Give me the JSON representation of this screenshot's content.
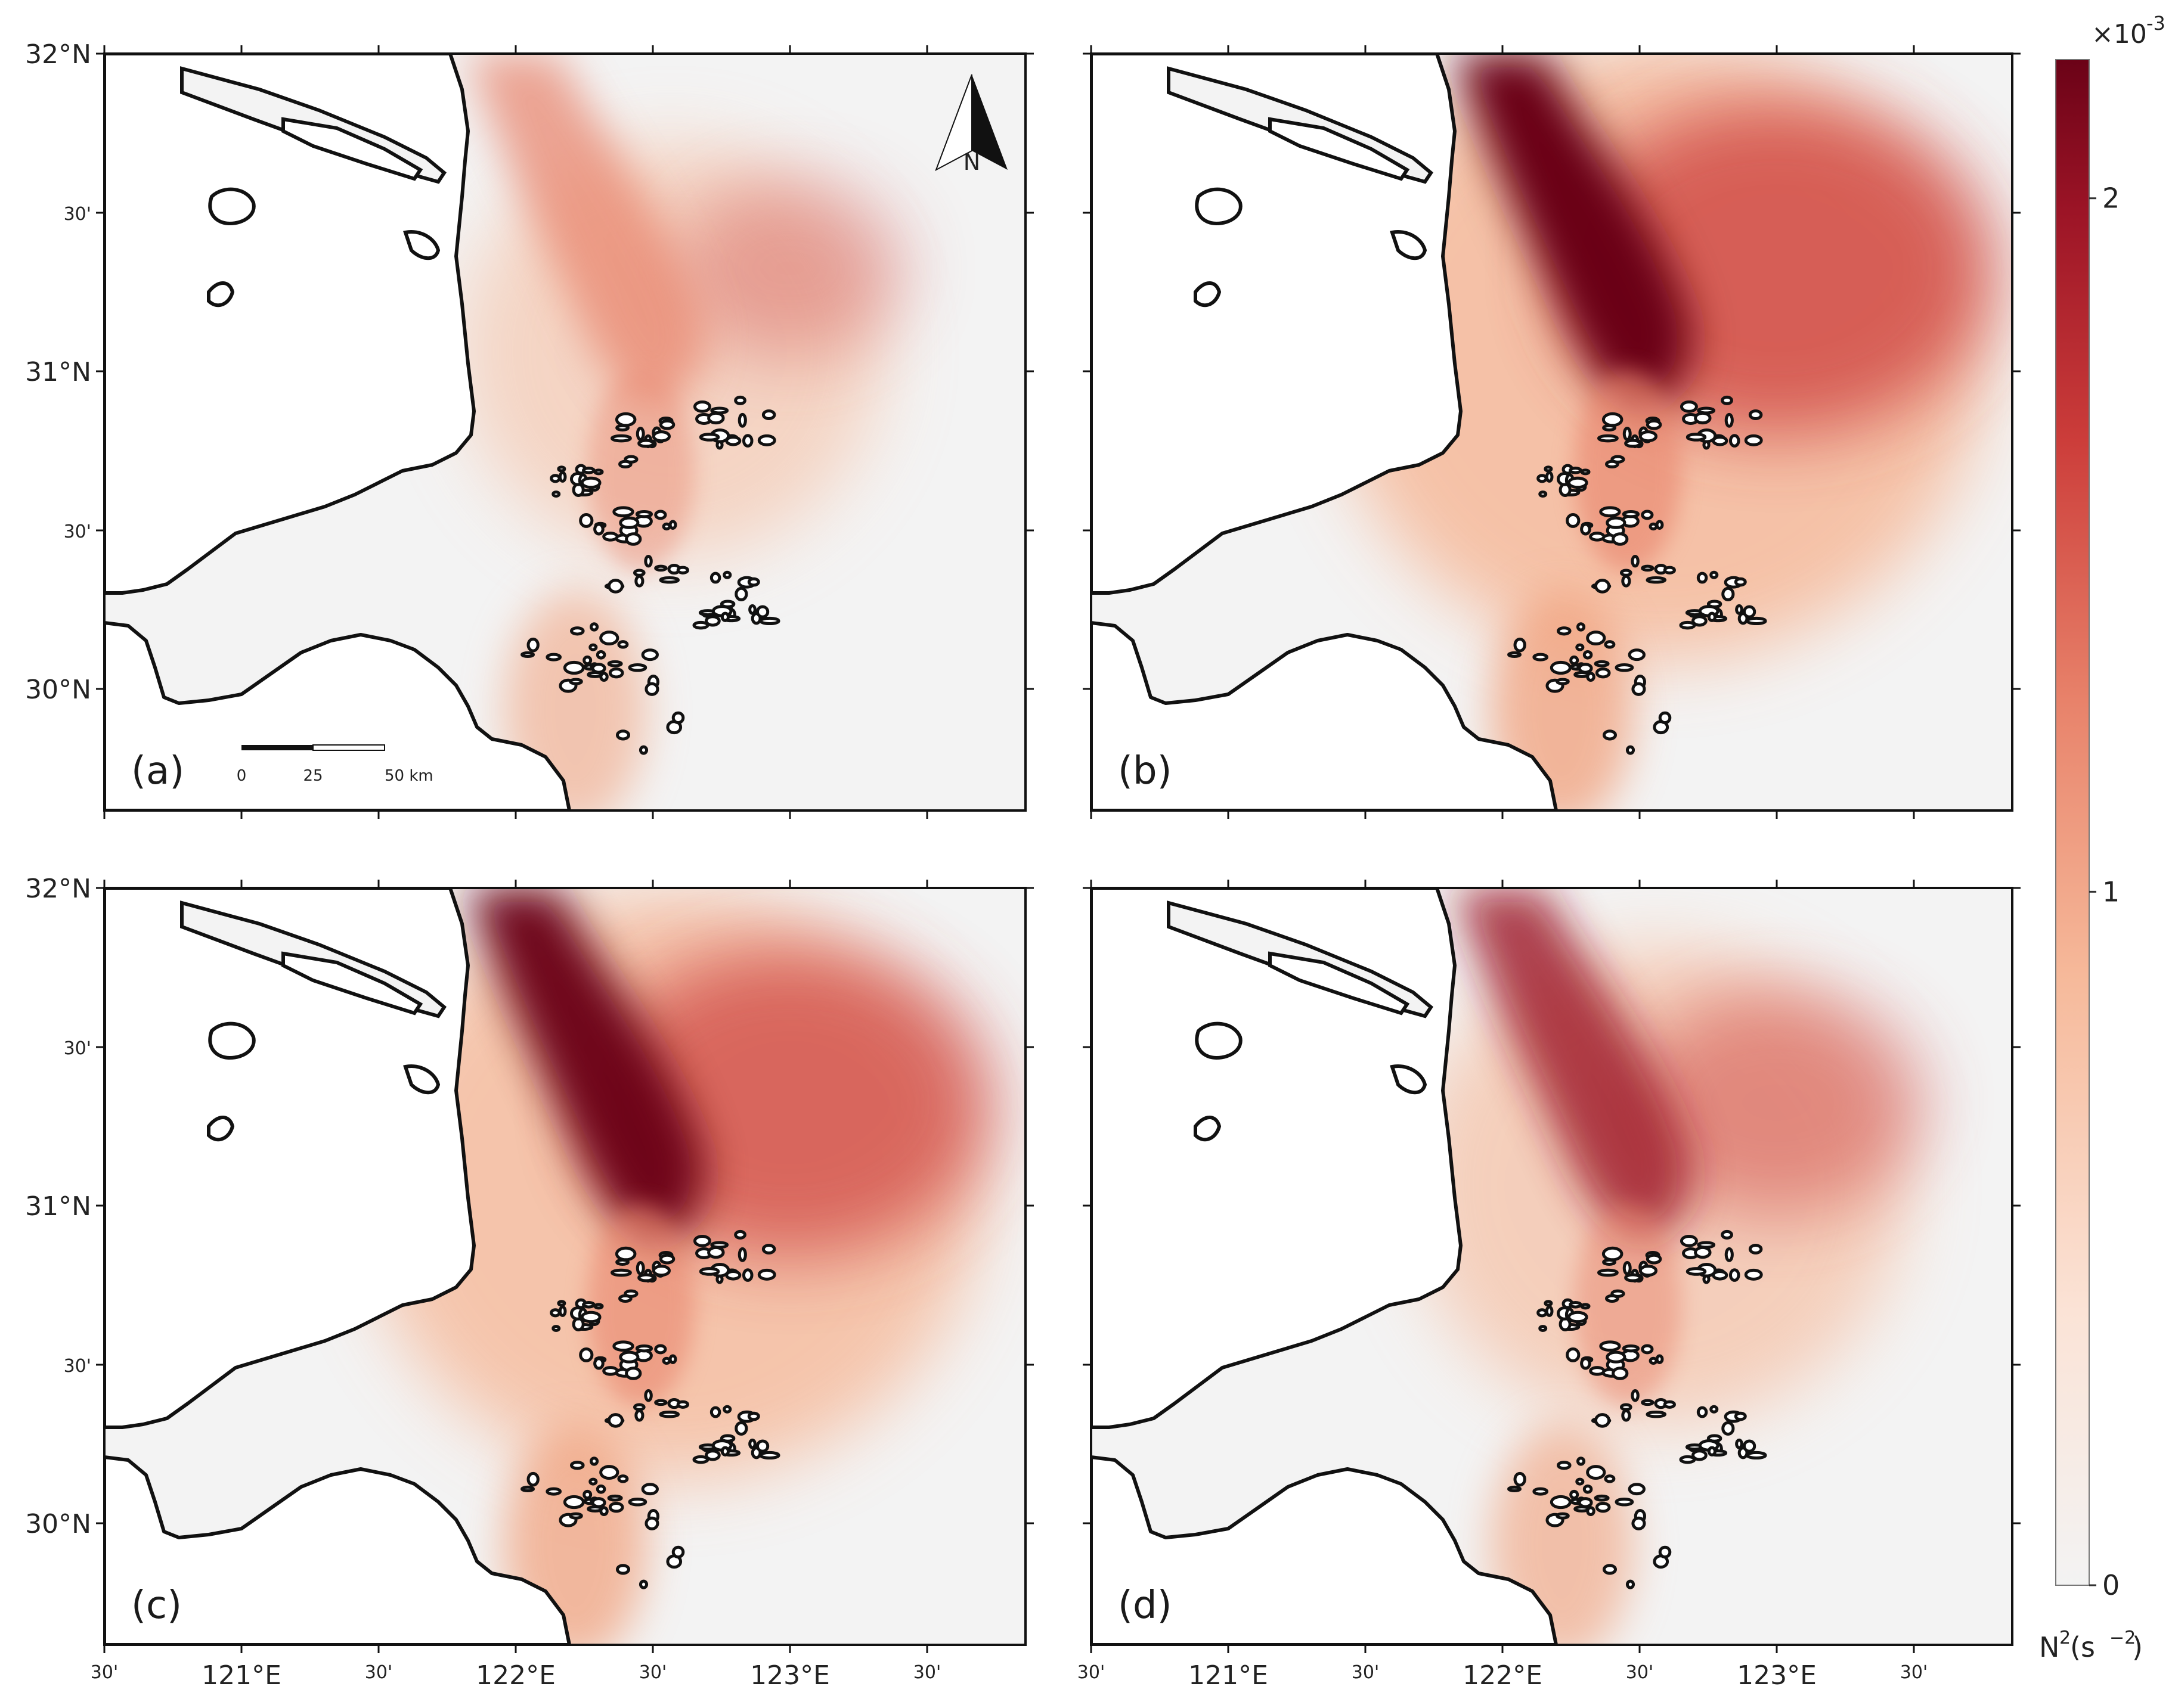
{
  "panels": [
    {
      "id": "a",
      "label": "(a)",
      "plume_strength": 0.35
    },
    {
      "id": "b",
      "label": "(b)",
      "plume_strength": 1.0
    },
    {
      "id": "c",
      "label": "(c)",
      "plume_strength": 0.9
    },
    {
      "id": "d",
      "label": "(d)",
      "plume_strength": 0.55
    }
  ],
  "lat_ticks": [
    "32°N",
    "30'",
    "31°N",
    "30'",
    "30°N"
  ],
  "lon_ticks": [
    "30'",
    "121°E",
    "30'",
    "122°E",
    "30'",
    "123°E",
    "30'"
  ],
  "map_extent": {
    "lon_min": 120.5,
    "lon_max": 123.9,
    "lat_min": 29.75,
    "lat_max": 32.0
  },
  "scale_bar": {
    "labels": [
      "0",
      "25",
      "50 km"
    ]
  },
  "north_arrow": {
    "label": "N",
    "icon": "north-arrow-icon"
  },
  "colorbar": {
    "exponent_label": "×10",
    "exponent_power": "-3",
    "ticks": [
      "2",
      "1",
      "0"
    ],
    "tick_values": [
      2,
      1,
      0
    ],
    "vmin": 0,
    "vmax": 2.2,
    "title_main": "N",
    "title_sup": "2",
    "title_unit_open": " (s",
    "title_unit_sup": "−2",
    "title_unit_close": ")",
    "colors": [
      "#f3f3f3",
      "#fbd7c2",
      "#f1a07c",
      "#d9573f",
      "#b01f2a",
      "#6b0217"
    ]
  }
}
